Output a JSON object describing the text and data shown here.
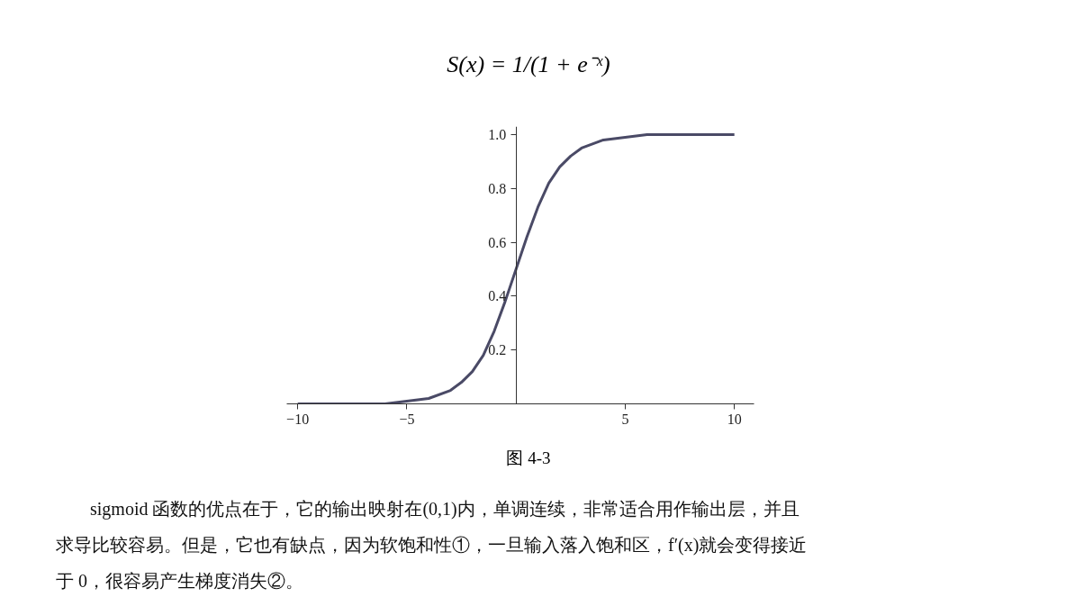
{
  "chart_data": {
    "type": "line",
    "title": "S(x) = 1/(1 + e⁻ˣ)",
    "x": [
      -10,
      -8,
      -6,
      -5,
      -4,
      -3,
      -2.5,
      -2,
      -1.5,
      -1,
      -0.5,
      0,
      0.5,
      1,
      1.5,
      2,
      2.5,
      3,
      4,
      5,
      6,
      8,
      10
    ],
    "series": [
      {
        "color": "#4a4a66",
        "values": [
          0.0,
          0.0,
          0.0,
          0.01,
          0.02,
          0.05,
          0.08,
          0.12,
          0.18,
          0.27,
          0.38,
          0.5,
          0.62,
          0.73,
          0.82,
          0.88,
          0.92,
          0.95,
          0.98,
          0.99,
          1.0,
          1.0,
          1.0
        ]
      }
    ],
    "xlim": [
      -10.5,
      10.9
    ],
    "ylim": [
      0,
      1.03
    ],
    "xticks": [
      {
        "value": -10,
        "label": "−10"
      },
      {
        "value": -5,
        "label": "−5"
      },
      5,
      10
    ],
    "yticks": [
      {
        "value": 0.2,
        "label": "0.2"
      },
      {
        "value": 0.4,
        "label": "0.4"
      },
      {
        "value": 0.6,
        "label": "0.6"
      },
      {
        "value": 0.8,
        "label": "0.8"
      },
      {
        "value": 1.0,
        "label": "1.0"
      }
    ],
    "grid": false,
    "marker": "none",
    "line_style": "solid",
    "annotations": [
      "图 4-3",
      "sigmoid 函数的优点在于，它的输出映射在(0,1)内，单调连续，非常适合用作输出层，并且",
      "求导比较容易。但是，它也有缺点，因为软饱和性①，一旦输入落入饱和区，f′(x)就会变得接近",
      "于 0，很容易产生梯度消失②。"
    ]
  }
}
